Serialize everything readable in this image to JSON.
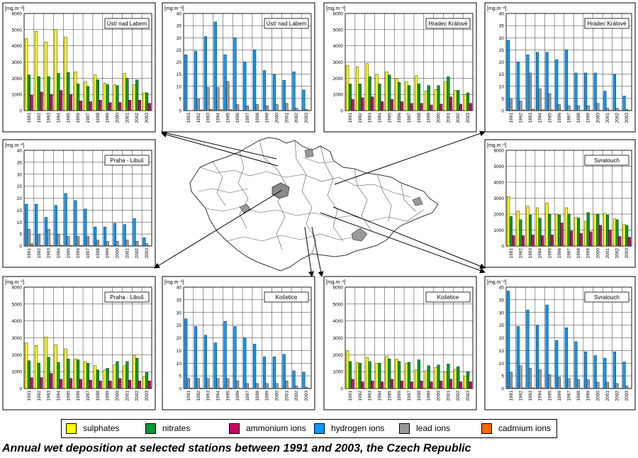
{
  "figure_title": "Annual wet deposition at selected stations between 1991 and 2003, the Czech Republic",
  "legend": [
    {
      "key": "sulphates",
      "label": "sulphates",
      "color": "#ffff00"
    },
    {
      "key": "nitrates",
      "label": "nitrates",
      "color": "#009933"
    },
    {
      "key": "ammonium",
      "label": "ammonium ions",
      "color": "#cc0066"
    },
    {
      "key": "hydrogen",
      "label": "hydrogen ions",
      "color": "#0099ff"
    },
    {
      "key": "lead",
      "label": "lead ions",
      "color": "#999999"
    },
    {
      "key": "cadmium",
      "label": "cadmium ions",
      "color": "#ff6600"
    }
  ],
  "chart_data": [
    {
      "type": "bar",
      "station": "Ústí nad Labem",
      "unit": "[mg.m⁻²]",
      "categories": [
        "1991",
        "1992",
        "1993",
        "1994",
        "1995",
        "1996",
        "1997",
        "1998",
        "1999",
        "2000",
        "2001",
        "2002",
        "2003"
      ],
      "ylim": [
        0,
        6000
      ],
      "yticks": [
        0,
        1000,
        2000,
        3000,
        4000,
        5000,
        6000
      ],
      "series": [
        {
          "name": "sulphates",
          "color": "#ffff00",
          "values": [
            4450,
            4900,
            4250,
            5000,
            4550,
            2400,
            1800,
            2200,
            1700,
            1600,
            2300,
            1600,
            1100
          ]
        },
        {
          "name": "nitrates",
          "color": "#009933",
          "values": [
            2200,
            2100,
            2100,
            2300,
            2350,
            1650,
            1500,
            1900,
            1600,
            1550,
            2000,
            1900,
            1100
          ]
        },
        {
          "name": "ammonium ions",
          "color": "#cc0066",
          "values": [
            950,
            1150,
            1000,
            1250,
            1000,
            600,
            550,
            650,
            500,
            500,
            650,
            650,
            450
          ]
        }
      ]
    },
    {
      "type": "bar",
      "station": "Ústí nad Labem",
      "unit": "[mg.m⁻²]",
      "categories": [
        "1991",
        "1992",
        "1993",
        "1994",
        "1995",
        "1996",
        "1997",
        "1998",
        "1999",
        "2000",
        "2001",
        "2002",
        "2003"
      ],
      "ylim": [
        0,
        40
      ],
      "yticks": [
        0,
        5,
        10,
        15,
        20,
        25,
        30,
        35,
        40
      ],
      "series": [
        {
          "name": "hydrogen ions",
          "color": "#0099ff",
          "values": [
            23,
            24.5,
            30.5,
            36.5,
            23,
            30,
            20,
            25,
            16.5,
            15,
            12.5,
            16,
            8.5
          ]
        },
        {
          "name": "lead ions",
          "color": "#999999",
          "values": [
            0,
            5,
            9.5,
            9.5,
            12,
            2.5,
            2,
            2.5,
            2,
            2.5,
            3,
            1,
            0.5
          ]
        },
        {
          "name": "cadmium ions",
          "color": "#ff6600",
          "values": [
            0,
            0.3,
            0.5,
            0.4,
            0.4,
            0.1,
            0.1,
            0.1,
            0.1,
            0.1,
            0.1,
            0.1,
            0.1
          ]
        }
      ]
    },
    {
      "type": "bar",
      "station": "Hradec Králové",
      "unit": "[mg.m⁻²]",
      "categories": [
        "1991",
        "1992",
        "1993",
        "1994",
        "1995",
        "1996",
        "1997",
        "1998",
        "1999",
        "2000",
        "2001",
        "2002",
        "2003"
      ],
      "ylim": [
        0,
        6000
      ],
      "yticks": [
        0,
        1000,
        2000,
        3000,
        4000,
        5000,
        6000
      ],
      "series": [
        {
          "name": "sulphates",
          "color": "#ffff00",
          "values": [
            2800,
            2700,
            2900,
            2250,
            2400,
            2000,
            1800,
            2150,
            1200,
            1300,
            1800,
            1250,
            1000
          ]
        },
        {
          "name": "nitrates",
          "color": "#009933",
          "values": [
            1650,
            1650,
            2100,
            1650,
            2200,
            1750,
            1550,
            1650,
            1550,
            1550,
            2100,
            1250,
            1100
          ]
        },
        {
          "name": "ammonium ions",
          "color": "#cc0066",
          "values": [
            700,
            800,
            850,
            550,
            700,
            550,
            450,
            450,
            350,
            400,
            850,
            400,
            450
          ]
        }
      ]
    },
    {
      "type": "bar",
      "station": "Hradec Králové",
      "unit": "[mg.m⁻²]",
      "categories": [
        "1991",
        "1992",
        "1993",
        "1994",
        "1995",
        "1996",
        "1997",
        "1998",
        "1999",
        "2000",
        "2001",
        "2002",
        "2003"
      ],
      "ylim": [
        0,
        40
      ],
      "yticks": [
        0,
        5,
        10,
        15,
        20,
        25,
        30,
        35,
        40
      ],
      "series": [
        {
          "name": "hydrogen ions",
          "color": "#0099ff",
          "values": [
            29,
            20,
            23,
            24,
            24,
            21,
            25,
            15.5,
            15.5,
            15.5,
            8,
            15,
            6
          ]
        },
        {
          "name": "lead ions",
          "color": "#999999",
          "values": [
            5,
            4,
            15.5,
            9,
            7,
            2.5,
            2,
            2,
            2,
            3,
            1,
            1,
            0.5
          ]
        },
        {
          "name": "cadmium ions",
          "color": "#ff6600",
          "values": [
            0.3,
            0.3,
            0.6,
            0.4,
            0.3,
            0.1,
            0.1,
            0.1,
            0.1,
            0.1,
            0.1,
            0.1,
            0.1
          ]
        }
      ]
    },
    {
      "type": "bar",
      "station": "Praha - Libuš",
      "unit": "[mg.m⁻²]",
      "categories": [
        "1991",
        "1992",
        "1993",
        "1994",
        "1995",
        "1996",
        "1997",
        "1998",
        "1999",
        "2000",
        "2001",
        "2002",
        "2003"
      ],
      "ylim": [
        0,
        40
      ],
      "yticks": [
        0,
        5,
        10,
        15,
        20,
        25,
        30,
        35,
        40
      ],
      "series": [
        {
          "name": "hydrogen ions",
          "color": "#0099ff",
          "values": [
            17.5,
            17.5,
            12,
            17,
            22,
            19,
            15.5,
            8,
            8,
            9.5,
            9,
            11.5,
            3.5
          ]
        },
        {
          "name": "lead ions",
          "color": "#999999",
          "values": [
            7,
            5,
            7,
            5,
            4,
            4,
            4,
            2.5,
            2,
            2,
            2.5,
            2,
            1
          ]
        },
        {
          "name": "cadmium ions",
          "color": "#ff6600",
          "values": [
            1,
            0.3,
            0.3,
            0.3,
            0.2,
            0.2,
            0.2,
            0.1,
            0.1,
            0.1,
            0.1,
            0.1,
            0.1
          ]
        }
      ]
    },
    {
      "type": "bar",
      "station": "Svratouch",
      "unit": "[mg.m⁻²]",
      "categories": [
        "1991",
        "1992",
        "1993",
        "1994",
        "1995",
        "1996",
        "1997",
        "1998",
        "1999",
        "2000",
        "2001",
        "2002",
        "2003"
      ],
      "ylim": [
        0,
        6000
      ],
      "yticks": [
        0,
        1000,
        2000,
        3000,
        4000,
        5000,
        6000
      ],
      "series": [
        {
          "name": "sulphates",
          "color": "#ffff00",
          "values": [
            3100,
            2200,
            2500,
            2400,
            2700,
            2000,
            2400,
            1800,
            1550,
            2000,
            2050,
            1700,
            1350
          ]
        },
        {
          "name": "nitrates",
          "color": "#009933",
          "values": [
            1850,
            1650,
            1950,
            1750,
            2000,
            1950,
            2000,
            1750,
            2100,
            2000,
            1950,
            1650,
            1300
          ]
        },
        {
          "name": "ammonium ions",
          "color": "#cc0066",
          "values": [
            650,
            650,
            700,
            650,
            700,
            1450,
            950,
            800,
            900,
            1300,
            1000,
            600,
            550
          ]
        }
      ]
    },
    {
      "type": "bar",
      "station": "Praha - Libuš",
      "unit": "[mg.m⁻²]",
      "categories": [
        "1991",
        "1992",
        "1993",
        "1994",
        "1995",
        "1996",
        "1997",
        "1998",
        "1999",
        "2000",
        "2001",
        "2002",
        "2003"
      ],
      "ylim": [
        0,
        6000
      ],
      "yticks": [
        0,
        1000,
        2000,
        3000,
        4000,
        5000,
        6000
      ],
      "series": [
        {
          "name": "sulphates",
          "color": "#ffff00",
          "values": [
            2700,
            2550,
            3050,
            2600,
            2350,
            1750,
            1600,
            1350,
            1100,
            1400,
            1350,
            1950,
            700
          ]
        },
        {
          "name": "nitrates",
          "color": "#009933",
          "values": [
            1650,
            1500,
            1850,
            1550,
            1750,
            1700,
            1500,
            1100,
            1200,
            1600,
            1600,
            1800,
            950
          ]
        },
        {
          "name": "ammonium ions",
          "color": "#cc0066",
          "values": [
            650,
            650,
            900,
            550,
            600,
            550,
            500,
            450,
            450,
            600,
            500,
            450,
            450
          ]
        }
      ]
    },
    {
      "type": "bar",
      "station": "Košetice",
      "unit": "[mg.m⁻²]",
      "categories": [
        "1991",
        "1992",
        "1993",
        "1994",
        "1995",
        "1996",
        "1997",
        "1998",
        "1999",
        "2000",
        "2001",
        "2002",
        "2003"
      ],
      "ylim": [
        0,
        40
      ],
      "yticks": [
        0,
        5,
        10,
        15,
        20,
        25,
        30,
        35,
        40
      ],
      "series": [
        {
          "name": "hydrogen ions",
          "color": "#0099ff",
          "values": [
            27.5,
            24.5,
            21,
            18,
            26.5,
            24.5,
            20,
            17.5,
            12.5,
            12.5,
            13.5,
            7,
            6.5
          ]
        },
        {
          "name": "lead ions",
          "color": "#999999",
          "values": [
            4,
            4,
            4,
            4,
            4,
            3,
            2,
            2,
            2,
            2,
            3,
            1,
            0.5
          ]
        },
        {
          "name": "cadmium ions",
          "color": "#ff6600",
          "values": [
            0.2,
            0.2,
            0.2,
            0.2,
            0.2,
            0.1,
            0.1,
            0.1,
            0.1,
            0.1,
            0.1,
            0.1,
            0.1
          ]
        }
      ]
    },
    {
      "type": "bar",
      "station": "Košetice",
      "unit": "[mg.m⁻²]",
      "categories": [
        "1991",
        "1992",
        "1993",
        "1994",
        "1995",
        "1996",
        "1997",
        "1998",
        "1999",
        "2000",
        "2001",
        "2002",
        "2003"
      ],
      "ylim": [
        0,
        6000
      ],
      "yticks": [
        0,
        1000,
        2000,
        3000,
        4000,
        5000,
        6000
      ],
      "series": [
        {
          "name": "sulphates",
          "color": "#ffff00",
          "values": [
            2250,
            1550,
            1850,
            1500,
            1900,
            1750,
            1500,
            1100,
            1050,
            1250,
            1000,
            1150,
            750
          ]
        },
        {
          "name": "nitrates",
          "color": "#009933",
          "values": [
            1600,
            1500,
            1600,
            1500,
            1750,
            1600,
            1550,
            1700,
            1350,
            1400,
            1450,
            1300,
            1000
          ]
        },
        {
          "name": "ammonium ions",
          "color": "#cc0066",
          "values": [
            550,
            400,
            450,
            400,
            550,
            450,
            400,
            450,
            400,
            450,
            550,
            400,
            400
          ]
        }
      ]
    },
    {
      "type": "bar",
      "station": "Svratouch",
      "unit": "[mg.m⁻²]",
      "categories": [
        "1991",
        "1992",
        "1993",
        "1994",
        "1995",
        "1996",
        "1997",
        "1998",
        "1999",
        "2000",
        "2001",
        "2002",
        "2003"
      ],
      "ylim": [
        0,
        40
      ],
      "yticks": [
        0,
        5,
        10,
        15,
        20,
        25,
        30,
        35,
        40
      ],
      "series": [
        {
          "name": "hydrogen ions",
          "color": "#0099ff",
          "values": [
            38.5,
            24.5,
            31,
            25,
            33,
            19,
            24,
            18.5,
            14.5,
            13,
            12,
            14.5,
            10.5
          ]
        },
        {
          "name": "lead ions",
          "color": "#999999",
          "values": [
            6.5,
            9,
            8,
            7.5,
            5.5,
            4.5,
            4,
            3.5,
            3.5,
            2.5,
            2.5,
            2,
            1
          ]
        },
        {
          "name": "cadmium ions",
          "color": "#ff6600",
          "values": [
            0.3,
            0.3,
            0.3,
            0.3,
            0.3,
            0.2,
            0.2,
            0.1,
            0.1,
            0.1,
            0.1,
            0.1,
            0.1
          ]
        }
      ]
    }
  ]
}
